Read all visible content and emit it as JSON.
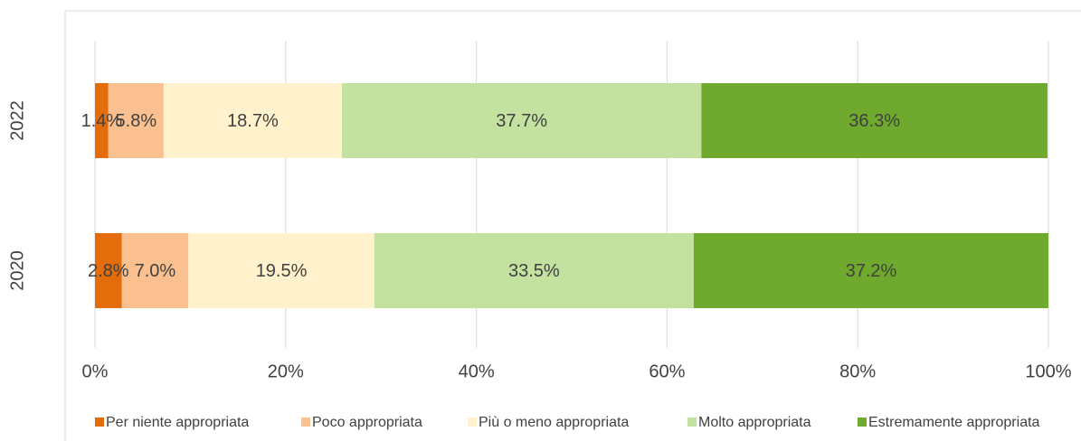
{
  "chart_data": {
    "type": "stacked_bar_horizontal",
    "categories": [
      "2022",
      "2020"
    ],
    "series": [
      {
        "name": "Per niente appropriata",
        "color": "#e46c0a",
        "values": [
          1.4,
          2.8
        ],
        "value_labels": [
          "1.4%",
          "2.8%"
        ]
      },
      {
        "name": "Poco appropriata",
        "color": "#fac090",
        "values": [
          5.8,
          7.0
        ],
        "value_labels": [
          "5.8%",
          "7.0%"
        ]
      },
      {
        "name": "Più o meno appropriata",
        "color": "#fff2cc",
        "values": [
          18.7,
          19.5
        ],
        "value_labels": [
          "18.7%",
          "19.5%"
        ]
      },
      {
        "name": "Molto appropriata",
        "color": "#c3e2a0",
        "values": [
          37.7,
          33.5
        ],
        "value_labels": [
          "37.7%",
          "33.5%"
        ]
      },
      {
        "name": "Estremamente appropriata",
        "color": "#6fa92e",
        "values": [
          36.3,
          37.2
        ],
        "value_labels": [
          "36.3%",
          "37.2%"
        ]
      }
    ],
    "xlim": [
      0,
      100
    ],
    "xticks": [
      {
        "value": 0,
        "label": "0%"
      },
      {
        "value": 20,
        "label": "20%"
      },
      {
        "value": 40,
        "label": "40%"
      },
      {
        "value": 60,
        "label": "60%"
      },
      {
        "value": 80,
        "label": "80%"
      },
      {
        "value": 100,
        "label": "100%"
      }
    ],
    "grid": true,
    "legend": "bottom"
  }
}
